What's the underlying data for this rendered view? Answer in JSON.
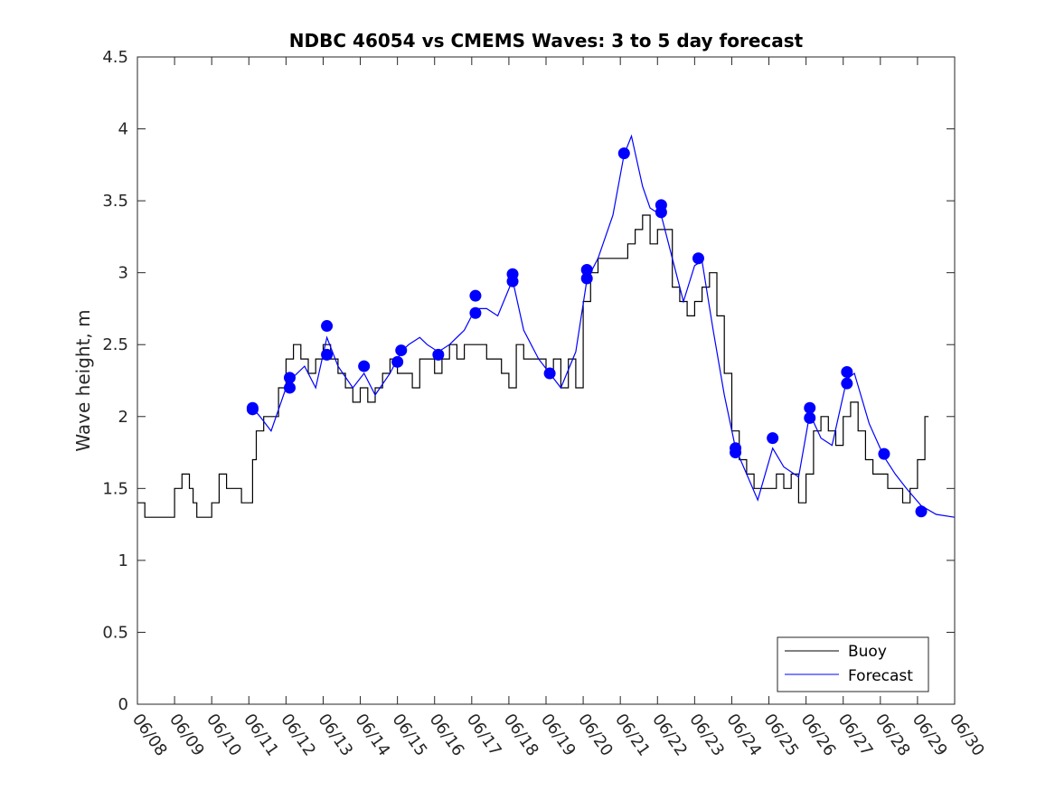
{
  "chart_data": {
    "type": "line",
    "title": "NDBC 46054 vs CMEMS Waves: 3 to 5 day forecast",
    "xlabel": "",
    "ylabel": "Wave height, m",
    "ylim": [
      0,
      4.5
    ],
    "yticks": [
      "0",
      "0.5",
      "1",
      "1.5",
      "2",
      "2.5",
      "3",
      "3.5",
      "4",
      "4.5"
    ],
    "xlim_days": [
      8,
      30
    ],
    "xticks": [
      "06/08",
      "06/09",
      "06/10",
      "06/11",
      "06/12",
      "06/13",
      "06/14",
      "06/15",
      "06/16",
      "06/17",
      "06/18",
      "06/19",
      "06/20",
      "06/21",
      "06/22",
      "06/23",
      "06/24",
      "06/25",
      "06/26",
      "06/27",
      "06/28",
      "06/29",
      "06/30"
    ],
    "legend": {
      "location": "bottom-right",
      "entries": [
        "Buoy",
        "Forecast"
      ]
    },
    "colors": {
      "buoy": "#000000",
      "forecast": "#0000ff"
    },
    "series": [
      {
        "name": "Buoy",
        "x": [
          8.0,
          8.2,
          8.4,
          8.6,
          8.8,
          9.0,
          9.2,
          9.4,
          9.5,
          9.6,
          9.8,
          10.0,
          10.2,
          10.4,
          10.6,
          10.8,
          11.0,
          11.1,
          11.2,
          11.4,
          11.6,
          11.8,
          12.0,
          12.2,
          12.4,
          12.6,
          12.8,
          13.0,
          13.2,
          13.4,
          13.6,
          13.8,
          14.0,
          14.2,
          14.4,
          14.6,
          14.8,
          15.0,
          15.2,
          15.4,
          15.6,
          15.8,
          16.0,
          16.2,
          16.4,
          16.6,
          16.8,
          17.0,
          17.2,
          17.4,
          17.6,
          17.8,
          18.0,
          18.2,
          18.4,
          18.6,
          18.8,
          19.0,
          19.2,
          19.4,
          19.6,
          19.8,
          20.0,
          20.2,
          20.4,
          20.6,
          20.8,
          21.0,
          21.2,
          21.4,
          21.6,
          21.8,
          22.0,
          22.2,
          22.4,
          22.6,
          22.8,
          23.0,
          23.2,
          23.4,
          23.6,
          23.8,
          24.0,
          24.2,
          24.4,
          24.6,
          24.8,
          25.0,
          25.2,
          25.4,
          25.6,
          25.8,
          26.0,
          26.2,
          26.4,
          26.6,
          26.8,
          27.0,
          27.2,
          27.4,
          27.6,
          27.8,
          28.0,
          28.2,
          28.4,
          28.6,
          28.8,
          29.0,
          29.2,
          29.3
        ],
        "y": [
          1.4,
          1.3,
          1.3,
          1.3,
          1.3,
          1.5,
          1.6,
          1.5,
          1.4,
          1.3,
          1.3,
          1.4,
          1.6,
          1.5,
          1.5,
          1.4,
          1.4,
          1.7,
          1.9,
          2.0,
          2.0,
          2.2,
          2.4,
          2.5,
          2.4,
          2.3,
          2.4,
          2.5,
          2.4,
          2.3,
          2.2,
          2.1,
          2.2,
          2.1,
          2.2,
          2.3,
          2.4,
          2.3,
          2.3,
          2.2,
          2.4,
          2.4,
          2.3,
          2.4,
          2.5,
          2.4,
          2.5,
          2.5,
          2.5,
          2.4,
          2.4,
          2.3,
          2.2,
          2.5,
          2.4,
          2.4,
          2.4,
          2.3,
          2.4,
          2.2,
          2.4,
          2.2,
          2.8,
          3.0,
          3.1,
          3.1,
          3.1,
          3.1,
          3.2,
          3.3,
          3.4,
          3.2,
          3.3,
          3.3,
          2.9,
          2.8,
          2.7,
          2.8,
          2.9,
          3.0,
          2.7,
          2.3,
          1.9,
          1.7,
          1.6,
          1.5,
          1.5,
          1.5,
          1.6,
          1.5,
          1.6,
          1.4,
          1.6,
          1.9,
          2.0,
          1.9,
          1.8,
          2.0,
          2.1,
          1.9,
          1.7,
          1.6,
          1.6,
          1.5,
          1.5,
          1.4,
          1.5,
          1.7,
          2.0,
          2.0
        ]
      },
      {
        "name": "Forecast",
        "x": [
          11.1,
          11.3,
          11.6,
          12.0,
          12.1,
          12.5,
          12.8,
          13.1,
          13.4,
          13.8,
          14.1,
          14.4,
          14.8,
          15.1,
          15.3,
          15.6,
          15.8,
          16.1,
          16.4,
          16.8,
          17.1,
          17.4,
          17.7,
          18.1,
          18.4,
          18.8,
          19.1,
          19.4,
          19.8,
          20.1,
          20.4,
          20.8,
          21.1,
          21.3,
          21.6,
          21.8,
          22.1,
          22.4,
          22.7,
          23.0,
          23.2,
          23.5,
          23.8,
          24.1,
          24.4,
          24.7,
          25.1,
          25.4,
          25.8,
          26.1,
          26.4,
          26.7,
          27.1,
          27.3,
          27.7,
          28.1,
          28.4,
          28.7,
          29.1,
          29.5,
          30.0
        ],
        "y": [
          2.06,
          2.0,
          1.9,
          2.2,
          2.25,
          2.35,
          2.2,
          2.55,
          2.35,
          2.2,
          2.3,
          2.15,
          2.3,
          2.45,
          2.5,
          2.55,
          2.5,
          2.45,
          2.5,
          2.6,
          2.75,
          2.75,
          2.7,
          2.95,
          2.6,
          2.4,
          2.3,
          2.2,
          2.45,
          2.95,
          3.1,
          3.4,
          3.82,
          3.95,
          3.6,
          3.45,
          3.4,
          3.1,
          2.8,
          3.05,
          3.08,
          2.6,
          2.15,
          1.78,
          1.6,
          1.42,
          1.78,
          1.65,
          1.58,
          2.02,
          1.85,
          1.8,
          2.26,
          2.3,
          1.95,
          1.72,
          1.6,
          1.5,
          1.38,
          1.32,
          1.3
        ]
      }
    ],
    "markers": {
      "x": [
        11.1,
        11.1,
        12.1,
        12.1,
        13.1,
        13.1,
        14.1,
        15.0,
        15.1,
        16.1,
        17.1,
        17.1,
        18.1,
        18.1,
        19.1,
        20.1,
        20.1,
        21.1,
        22.1,
        22.1,
        23.1,
        24.1,
        24.1,
        25.1,
        26.1,
        26.1,
        27.1,
        27.1,
        28.1,
        29.1
      ],
      "y": [
        2.06,
        2.05,
        2.27,
        2.2,
        2.63,
        2.43,
        2.35,
        2.38,
        2.46,
        2.43,
        2.84,
        2.72,
        2.99,
        2.94,
        2.3,
        3.02,
        2.96,
        3.83,
        3.47,
        3.42,
        3.1,
        1.78,
        1.75,
        1.85,
        2.06,
        1.99,
        2.31,
        2.23,
        1.74,
        1.34
      ]
    }
  }
}
